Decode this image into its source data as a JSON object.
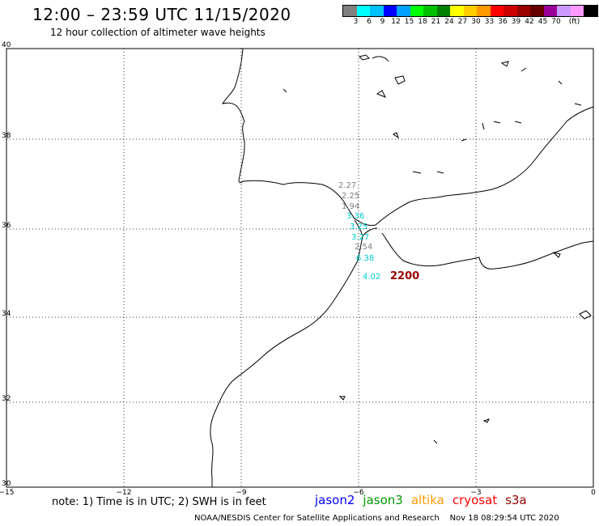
{
  "header": {
    "title": "12:00 – 23:59 UTC 11/15/2020",
    "subtitle": "12 hour collection of altimeter wave heights"
  },
  "legend": {
    "colors": [
      "#808080",
      "#00ffff",
      "#00c0ff",
      "#0000ff",
      "#00a0ff",
      "#00ff00",
      "#00c000",
      "#008000",
      "#ffff00",
      "#ffcc00",
      "#ff9900",
      "#ff0000",
      "#cc0000",
      "#990000",
      "#660000",
      "#990099",
      "#cc99ff",
      "#ff99ff",
      "#000000"
    ],
    "labels": [
      "3",
      "6",
      "9",
      "12",
      "15",
      "18",
      "21",
      "24",
      "27",
      "30",
      "33",
      "36",
      "39",
      "42",
      "45",
      "70",
      "(ft)"
    ]
  },
  "axes": {
    "x_labels": [
      "−15",
      "−12",
      "−9",
      "−6",
      "−3",
      "0"
    ],
    "y_labels": [
      "40",
      "38",
      "36",
      "34",
      "32",
      "30"
    ]
  },
  "measurements": [
    {
      "value": "2.27",
      "color": "#808080"
    },
    {
      "value": "2.25",
      "color": "#808080"
    },
    {
      "value": "1.94",
      "color": "#808080"
    },
    {
      "value": "3.36",
      "color": "#00cccc"
    },
    {
      "value": "3.25",
      "color": "#00cccc"
    },
    {
      "value": "3.27",
      "color": "#00cccc"
    },
    {
      "value": "2.54",
      "color": "#808080"
    },
    {
      "value": "6.38",
      "color": "#00cccc"
    },
    {
      "value": "4.02",
      "color": "#00cccc"
    }
  ],
  "time_label": {
    "value": "2200",
    "color": "#990000"
  },
  "footer": {
    "note": "note: 1) Time is in UTC; 2) SWH is in feet",
    "satellites": [
      {
        "name": "jason2",
        "color": "#0000ff"
      },
      {
        "name": "jason3",
        "color": "#009900"
      },
      {
        "name": "altika",
        "color": "#ff9900"
      },
      {
        "name": "cryosat",
        "color": "#ff0000"
      },
      {
        "name": "s3a",
        "color": "#990000"
      }
    ],
    "credit": "NOAA/NESDIS Center for Satellite Applications and Research",
    "timestamp": "Nov 18 08:29:54 UTC 2020"
  }
}
